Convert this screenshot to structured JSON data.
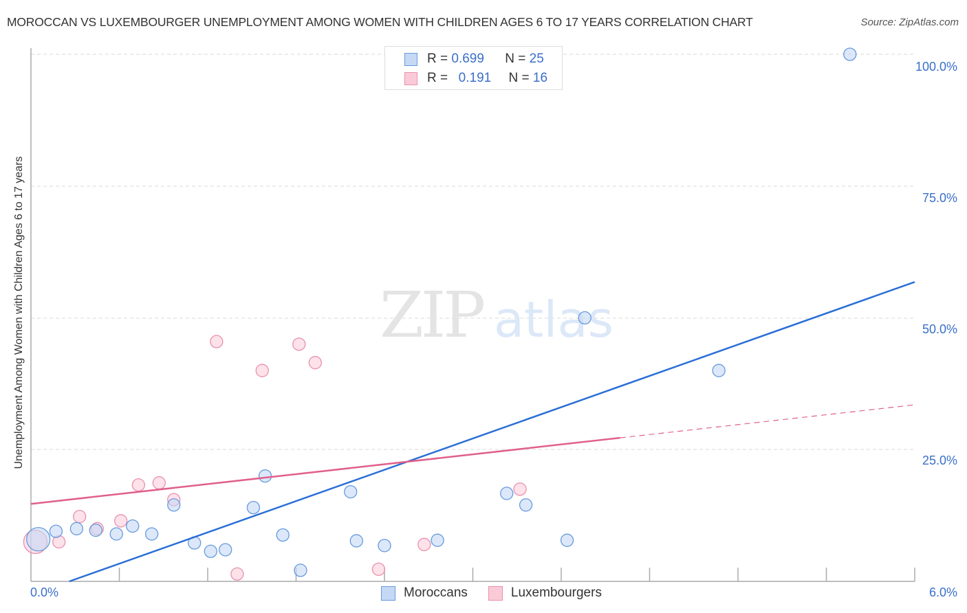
{
  "header": {
    "title": "MOROCCAN VS LUXEMBOURGER UNEMPLOYMENT AMONG WOMEN WITH CHILDREN AGES 6 TO 17 YEARS CORRELATION CHART",
    "source": "Source: ZipAtlas.com"
  },
  "legend": {
    "rows": [
      {
        "r_label": "R =",
        "r_value": "0.699",
        "n_label": "N =",
        "n_value": "25",
        "color": "#6699dd",
        "fill": "#c5d9f5"
      },
      {
        "r_label": "R =",
        "r_value": "0.191",
        "n_label": "N =",
        "n_value": "16",
        "color": "#e890ad",
        "fill": "#fbcad8"
      }
    ],
    "bottom": [
      {
        "label": "Moroccans",
        "color": "#6699dd",
        "fill": "#c5d9f5"
      },
      {
        "label": "Luxembourgers",
        "color": "#e890ad",
        "fill": "#fbcad8"
      }
    ]
  },
  "axes": {
    "ylabel": "Unemployment Among Women with Children Ages 6 to 17 years",
    "yticks": [
      "100.0%",
      "75.0%",
      "50.0%",
      "25.0%"
    ],
    "xticks": [
      "0.0%",
      "6.0%"
    ]
  },
  "watermark": {
    "zip": "ZIP",
    "atlas": "atlas"
  },
  "colors": {
    "blue": "#2a6fd6",
    "pink": "#e0608a",
    "tick_text": "#3a6fc9"
  },
  "chart_data": {
    "type": "scatter",
    "title": "MOROCCAN VS LUXEMBOURGER UNEMPLOYMENT AMONG WOMEN WITH CHILDREN AGES 6 TO 17 YEARS CORRELATION CHART",
    "xlabel": "",
    "ylabel": "Unemployment Among Women with Children Ages 6 to 17 years",
    "xlim": [
      0,
      6.0
    ],
    "ylim": [
      0,
      100
    ],
    "grid": true,
    "legend_position": "bottom",
    "series": [
      {
        "name": "Moroccans",
        "color": "#6699dd",
        "R": 0.699,
        "N": 25,
        "points": [
          {
            "x": 0.05,
            "y": 8.0,
            "size": "large"
          },
          {
            "x": 0.17,
            "y": 9.5
          },
          {
            "x": 0.31,
            "y": 10.0
          },
          {
            "x": 0.44,
            "y": 9.7
          },
          {
            "x": 0.58,
            "y": 9.0
          },
          {
            "x": 0.69,
            "y": 10.5
          },
          {
            "x": 0.82,
            "y": 9.0
          },
          {
            "x": 0.97,
            "y": 14.5
          },
          {
            "x": 1.11,
            "y": 7.3
          },
          {
            "x": 1.22,
            "y": 5.7
          },
          {
            "x": 1.32,
            "y": 6.0
          },
          {
            "x": 1.51,
            "y": 14.0
          },
          {
            "x": 1.59,
            "y": 20.0
          },
          {
            "x": 1.71,
            "y": 8.8
          },
          {
            "x": 1.83,
            "y": 2.1
          },
          {
            "x": 2.17,
            "y": 17.0
          },
          {
            "x": 2.21,
            "y": 7.7
          },
          {
            "x": 2.4,
            "y": 6.8
          },
          {
            "x": 2.76,
            "y": 7.8
          },
          {
            "x": 3.23,
            "y": 16.7
          },
          {
            "x": 3.36,
            "y": 14.5
          },
          {
            "x": 3.64,
            "y": 7.8
          },
          {
            "x": 3.76,
            "y": 50.0
          },
          {
            "x": 4.67,
            "y": 40.0
          },
          {
            "x": 5.56,
            "y": 100.0
          }
        ],
        "trendline": {
          "x": [
            0.26,
            6.0
          ],
          "y": [
            0,
            56.8
          ],
          "style": "solid"
        }
      },
      {
        "name": "Luxembourgers",
        "color": "#e890ad",
        "R": 0.191,
        "N": 16,
        "points": [
          {
            "x": 0.03,
            "y": 7.5,
            "size": "large"
          },
          {
            "x": 0.19,
            "y": 7.5
          },
          {
            "x": 0.33,
            "y": 12.3
          },
          {
            "x": 0.45,
            "y": 10.0
          },
          {
            "x": 0.61,
            "y": 11.5
          },
          {
            "x": 0.73,
            "y": 18.3
          },
          {
            "x": 0.87,
            "y": 18.7
          },
          {
            "x": 0.97,
            "y": 15.5
          },
          {
            "x": 1.26,
            "y": 45.5
          },
          {
            "x": 1.4,
            "y": 1.4
          },
          {
            "x": 1.57,
            "y": 40.0
          },
          {
            "x": 1.82,
            "y": 45.0
          },
          {
            "x": 1.93,
            "y": 41.5
          },
          {
            "x": 2.36,
            "y": 2.3
          },
          {
            "x": 2.67,
            "y": 7.0
          },
          {
            "x": 3.32,
            "y": 17.5
          }
        ],
        "trendline": {
          "x": [
            0,
            6.0
          ],
          "y": [
            14.7,
            33.5
          ],
          "solid_until_x": 4.0,
          "style": "solid-then-dashed"
        }
      }
    ]
  }
}
